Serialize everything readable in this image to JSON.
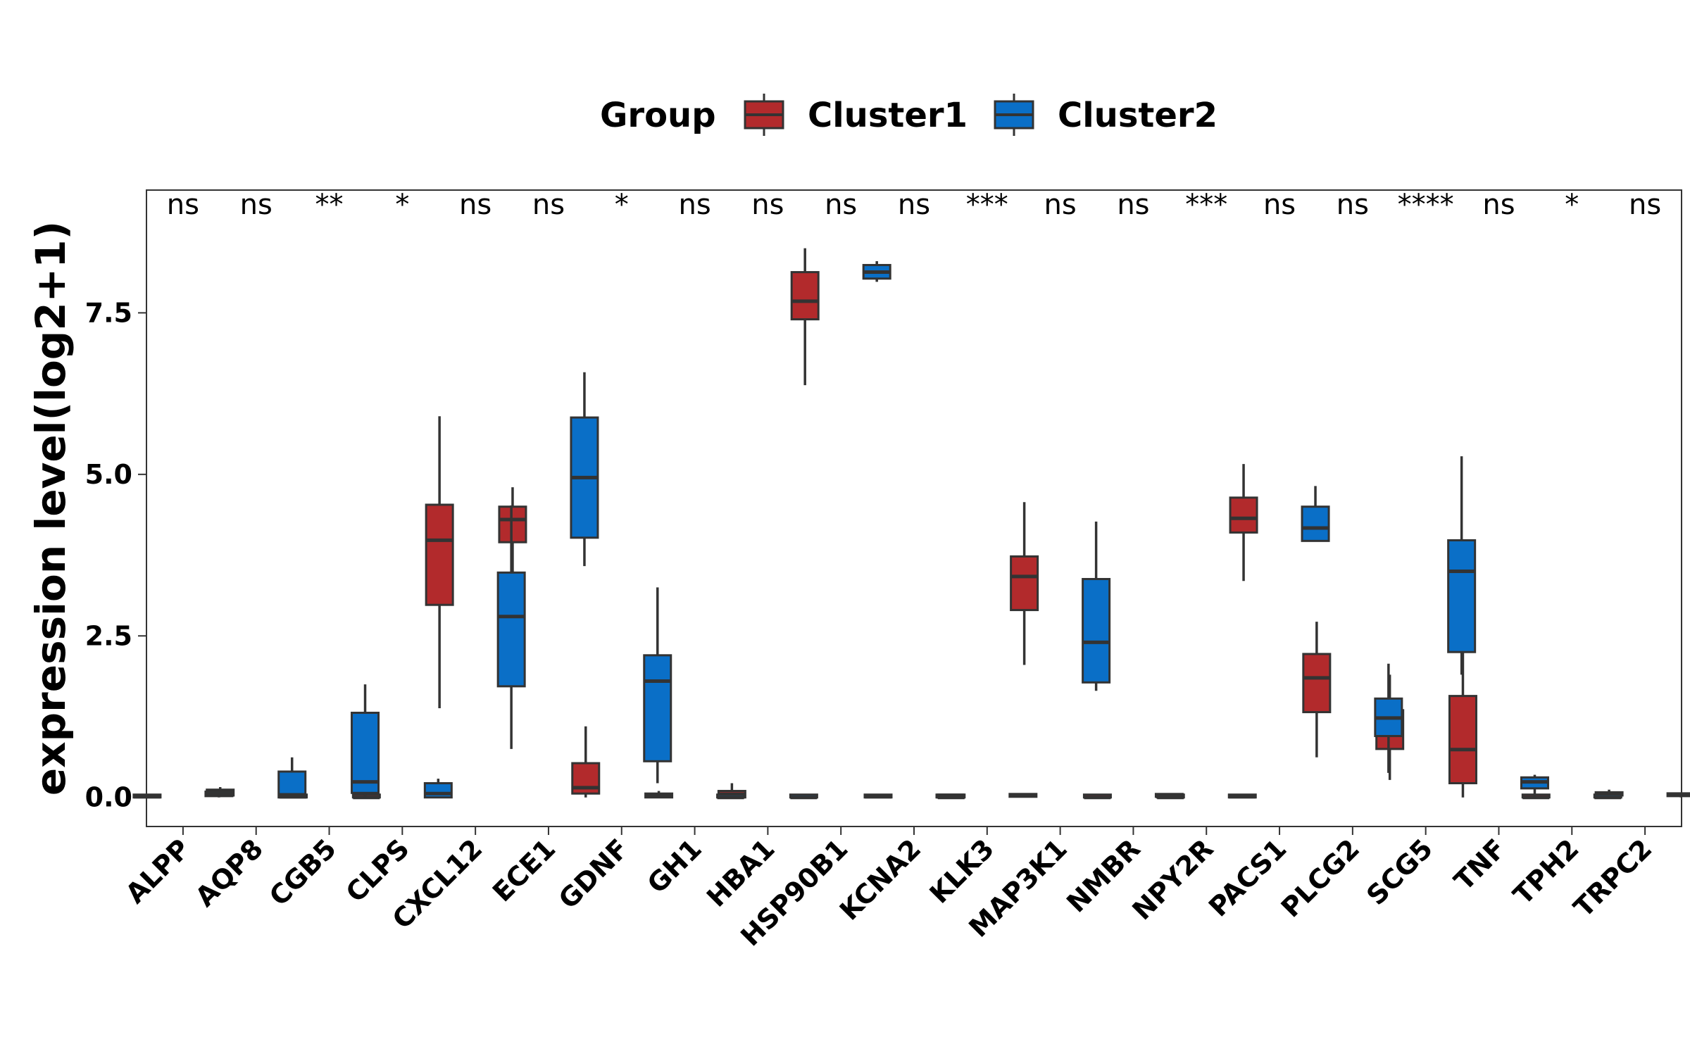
{
  "chart_data": {
    "type": "box",
    "xlabel": "",
    "ylabel": "expression level(log2+1)",
    "ylim": [
      -0.45,
      9.4
    ],
    "yticks": [
      0.0,
      2.5,
      5.0,
      7.5
    ],
    "ytick_labels": [
      "0.0",
      "2.5",
      "5.0",
      "7.5"
    ],
    "grid": false,
    "legend": {
      "title": "Group",
      "position": "top",
      "items": [
        {
          "name": "Cluster1",
          "color": "#b22a2c"
        },
        {
          "name": "Cluster2",
          "color": "#0a6fc7"
        }
      ]
    },
    "categories": [
      "ALPP",
      "AQP8",
      "CGB5",
      "CLPS",
      "CXCL12",
      "ECE1",
      "GDNF",
      "GH1",
      "HBA1",
      "HSP90B1",
      "KCNA2",
      "KLK3",
      "MAP3K1",
      "NMBR",
      "NPY2R",
      "PACS1",
      "PLCG2",
      "SCG5",
      "TNF",
      "TPH2",
      "TRPC2"
    ],
    "significance": [
      "ns",
      "ns",
      "**",
      "*",
      "ns",
      "ns",
      "*",
      "ns",
      "ns",
      "ns",
      "ns",
      "***",
      "ns",
      "ns",
      "***",
      "ns",
      "ns",
      "****",
      "ns",
      "*",
      "ns"
    ],
    "series": [
      {
        "name": "Cluster1",
        "color": "#b22a2c",
        "boxes": [
          {
            "min": 0.0,
            "q1": 0.0,
            "median": 0.01,
            "q3": 0.03,
            "max": 0.05
          },
          {
            "min": 0.02,
            "q1": 0.03,
            "median": 0.07,
            "q3": 0.12,
            "max": 0.16
          },
          {
            "min": 0.0,
            "q1": 0.0,
            "median": 0.01,
            "q3": 0.03,
            "max": 0.08
          },
          {
            "min": 0.0,
            "q1": 0.0,
            "median": 0.0,
            "q3": 0.01,
            "max": 0.02
          },
          {
            "min": 1.38,
            "q1": 2.98,
            "median": 3.98,
            "q3": 4.53,
            "max": 5.9
          },
          {
            "min": 3.2,
            "q1": 3.95,
            "median": 4.3,
            "q3": 4.5,
            "max": 4.8
          },
          {
            "min": 0.0,
            "q1": 0.06,
            "median": 0.15,
            "q3": 0.53,
            "max": 1.1
          },
          {
            "min": 0.0,
            "q1": 0.0,
            "median": 0.02,
            "q3": 0.06,
            "max": 0.1
          },
          {
            "min": 0.0,
            "q1": 0.0,
            "median": 0.05,
            "q3": 0.1,
            "max": 0.22
          },
          {
            "min": 6.38,
            "q1": 7.4,
            "median": 7.68,
            "q3": 8.13,
            "max": 8.5
          },
          {
            "min": 0.0,
            "q1": 0.0,
            "median": 0.01,
            "q3": 0.03,
            "max": 0.05
          },
          {
            "min": 0.0,
            "q1": 0.0,
            "median": 0.0,
            "q3": 0.01,
            "max": 0.02
          },
          {
            "min": 2.05,
            "q1": 2.9,
            "median": 3.42,
            "q3": 3.73,
            "max": 4.57
          },
          {
            "min": 0.0,
            "q1": 0.0,
            "median": 0.0,
            "q3": 0.01,
            "max": 0.02
          },
          {
            "min": 0.0,
            "q1": 0.0,
            "median": 0.0,
            "q3": 0.01,
            "max": 0.02
          },
          {
            "min": 3.35,
            "q1": 4.1,
            "median": 4.32,
            "q3": 4.64,
            "max": 5.16
          },
          {
            "min": 0.62,
            "q1": 1.32,
            "median": 1.85,
            "q3": 2.22,
            "max": 2.72
          },
          {
            "min": 0.27,
            "q1": 0.75,
            "median": 1.0,
            "q3": 1.35,
            "max": 1.9
          },
          {
            "min": 0.0,
            "q1": 0.22,
            "median": 0.74,
            "q3": 1.57,
            "max": 3.17
          },
          {
            "min": 0.0,
            "q1": 0.0,
            "median": 0.0,
            "q3": 0.01,
            "max": 0.02
          },
          {
            "min": 0.0,
            "q1": 0.03,
            "median": 0.05,
            "q3": 0.08,
            "max": 0.12
          }
        ]
      },
      {
        "name": "Cluster2",
        "color": "#0a6fc7",
        "boxes": [
          {
            "min": 0.0,
            "q1": 0.02,
            "median": 0.05,
            "q3": 0.09,
            "max": 0.12
          },
          {
            "min": 0.0,
            "q1": 0.0,
            "median": 0.04,
            "q3": 0.4,
            "max": 0.62
          },
          {
            "min": 0.0,
            "q1": 0.07,
            "median": 0.24,
            "q3": 1.31,
            "max": 1.75
          },
          {
            "min": 0.0,
            "q1": 0.0,
            "median": 0.06,
            "q3": 0.22,
            "max": 0.29
          },
          {
            "min": 0.75,
            "q1": 1.72,
            "median": 2.8,
            "q3": 3.48,
            "max": 4.52
          },
          {
            "min": 3.58,
            "q1": 4.02,
            "median": 4.95,
            "q3": 5.88,
            "max": 6.58
          },
          {
            "min": 0.22,
            "q1": 0.56,
            "median": 1.8,
            "q3": 2.2,
            "max": 3.25
          },
          {
            "min": 0.0,
            "q1": 0.0,
            "median": 0.0,
            "q3": 0.01,
            "max": 0.02
          },
          {
            "min": 0.0,
            "q1": 0.0,
            "median": 0.0,
            "q3": 0.01,
            "max": 0.02
          },
          {
            "min": 7.98,
            "q1": 8.03,
            "median": 8.13,
            "q3": 8.24,
            "max": 8.3
          },
          {
            "min": 0.0,
            "q1": 0.0,
            "median": 0.01,
            "q3": 0.02,
            "max": 0.03
          },
          {
            "min": 0.0,
            "q1": 0.01,
            "median": 0.03,
            "q3": 0.05,
            "max": 0.06
          },
          {
            "min": 1.65,
            "q1": 1.78,
            "median": 2.4,
            "q3": 3.38,
            "max": 4.27
          },
          {
            "min": 0.0,
            "q1": 0.01,
            "median": 0.03,
            "q3": 0.05,
            "max": 0.06
          },
          {
            "min": 0.0,
            "q1": 0.0,
            "median": 0.01,
            "q3": 0.02,
            "max": 0.03
          },
          {
            "min": 3.97,
            "q1": 3.97,
            "median": 4.17,
            "q3": 4.5,
            "max": 4.82
          },
          {
            "min": 0.38,
            "q1": 0.95,
            "median": 1.23,
            "q3": 1.53,
            "max": 2.07
          },
          {
            "min": 1.9,
            "q1": 2.25,
            "median": 3.5,
            "q3": 3.98,
            "max": 5.28
          },
          {
            "min": 0.0,
            "q1": 0.14,
            "median": 0.24,
            "q3": 0.31,
            "max": 0.35
          },
          {
            "min": 0.0,
            "q1": 0.0,
            "median": 0.0,
            "q3": 0.01,
            "max": 0.02
          },
          {
            "min": 0.0,
            "q1": 0.02,
            "median": 0.04,
            "q3": 0.06,
            "max": 0.07
          }
        ]
      }
    ]
  }
}
